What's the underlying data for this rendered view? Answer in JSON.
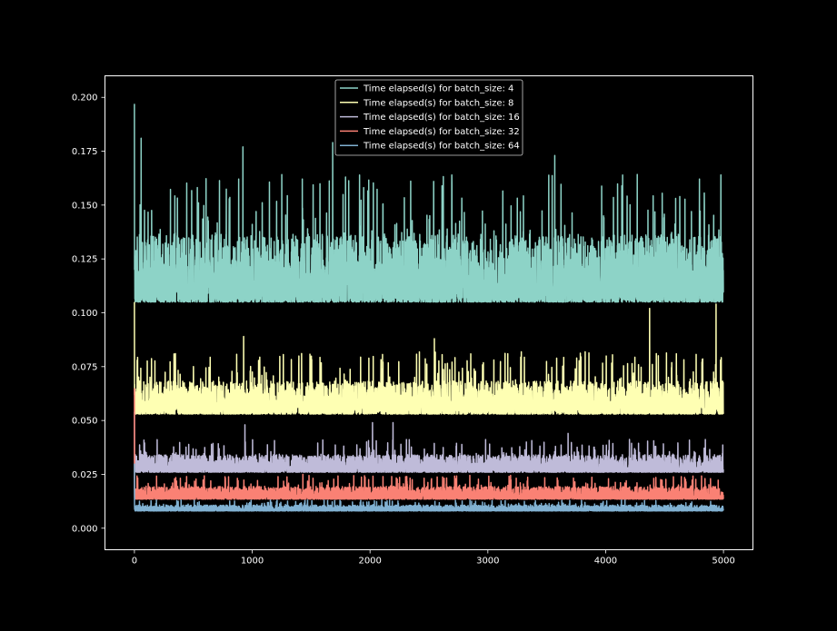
{
  "chart_data": {
    "type": "line",
    "title": "",
    "xlabel": "",
    "ylabel": "",
    "xlim": [
      -250,
      5250
    ],
    "ylim": [
      -0.01,
      0.21
    ],
    "xticks": [
      0,
      1000,
      2000,
      3000,
      4000,
      5000
    ],
    "xtick_labels": [
      "0",
      "1000",
      "2000",
      "3000",
      "4000",
      "5000"
    ],
    "yticks": [
      0.0,
      0.025,
      0.05,
      0.075,
      0.1,
      0.125,
      0.15,
      0.175,
      0.2
    ],
    "ytick_labels": [
      "0.000",
      "0.025",
      "0.050",
      "0.075",
      "0.100",
      "0.125",
      "0.150",
      "0.175",
      "0.200"
    ],
    "grid": false,
    "legend_position": "top-center",
    "background": "#000000",
    "axes_color": "#ffffff",
    "n_points": 5000,
    "series": [
      {
        "name": "Time elapsed(s) for batch_size: 4",
        "color": "#8dd3c7",
        "baseline": 0.105,
        "typical_max": 0.14,
        "first_value": 0.197,
        "peaks": [
          [
            57,
            0.181
          ],
          [
            921,
            0.177
          ],
          [
            1683,
            0.179
          ],
          [
            3568,
            0.173
          ],
          [
            4978,
            0.164
          ]
        ]
      },
      {
        "name": "Time elapsed(s) for batch_size: 8",
        "color": "#feffb3",
        "baseline": 0.053,
        "typical_max": 0.07,
        "first_value": 0.105,
        "peaks": [
          [
            927,
            0.089
          ],
          [
            2546,
            0.088
          ],
          [
            4373,
            0.102
          ],
          [
            4937,
            0.104
          ]
        ]
      },
      {
        "name": "Time elapsed(s) for batch_size: 16",
        "color": "#bfbbd9",
        "baseline": 0.026,
        "typical_max": 0.035,
        "first_value": 0.054,
        "peaks": [
          [
            938,
            0.048
          ],
          [
            2021,
            0.049
          ],
          [
            2195,
            0.049
          ],
          [
            3681,
            0.044
          ]
        ]
      },
      {
        "name": "Time elapsed(s) for batch_size: 32",
        "color": "#fa8174",
        "baseline": 0.0135,
        "typical_max": 0.02,
        "first_value": 0.065,
        "peaks": [
          [
            1430,
            0.025
          ],
          [
            2110,
            0.024
          ],
          [
            4024,
            0.023
          ]
        ]
      },
      {
        "name": "Time elapsed(s) for batch_size: 64",
        "color": "#81b1d2",
        "baseline": 0.008,
        "typical_max": 0.011,
        "first_value": 0.03,
        "peaks": [
          [
            1470,
            0.013
          ],
          [
            2100,
            0.013
          ],
          [
            3600,
            0.012
          ]
        ]
      }
    ]
  }
}
